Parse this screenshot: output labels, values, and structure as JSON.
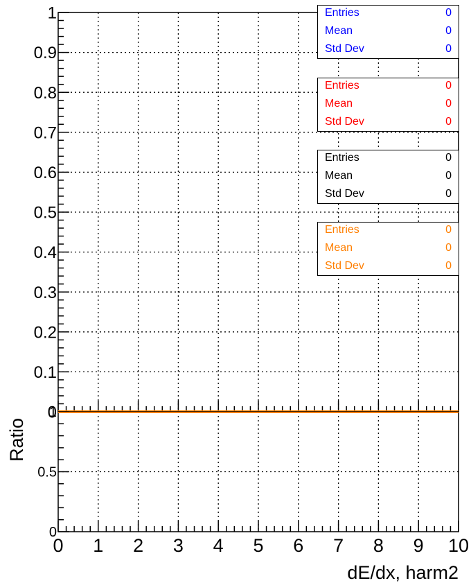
{
  "chart_data": [
    {
      "type": "line",
      "panel": "top",
      "x": [
        0,
        1,
        2,
        3,
        4,
        5,
        6,
        7,
        8,
        9,
        10
      ],
      "xlim": [
        0,
        10
      ],
      "ylim": [
        0,
        1
      ],
      "y_ticks": [
        "0",
        "0.1",
        "0.2",
        "0.3",
        "0.4",
        "0.5",
        "0.6",
        "0.7",
        "0.8",
        "0.9",
        "1"
      ],
      "grid": true,
      "series": [
        {
          "color": "#0000ff",
          "values": [
            0,
            0,
            0,
            0,
            0,
            0,
            0,
            0,
            0,
            0,
            0
          ]
        },
        {
          "color": "#ff0000",
          "values": [
            0,
            0,
            0,
            0,
            0,
            0,
            0,
            0,
            0,
            0,
            0
          ]
        },
        {
          "color": "#000000",
          "values": [
            0,
            0,
            0,
            0,
            0,
            0,
            0,
            0,
            0,
            0,
            0
          ]
        },
        {
          "color": "#ff7f00",
          "values": [
            0,
            0,
            0,
            0,
            0,
            0,
            0,
            0,
            0,
            0,
            0
          ]
        }
      ]
    },
    {
      "type": "line",
      "panel": "ratio",
      "xlabel": "dE/dx, harm2",
      "ylabel": "Ratio",
      "x_ticks": [
        "0",
        "1",
        "2",
        "3",
        "4",
        "5",
        "6",
        "7",
        "8",
        "9",
        "10"
      ],
      "y_ticks": [
        "0",
        "0.5",
        "1"
      ],
      "xlim": [
        0,
        10
      ],
      "ylim": [
        0,
        1
      ],
      "grid": true,
      "series": [
        {
          "color": "#ff7f00",
          "values": [
            1,
            1,
            1,
            1,
            1,
            1,
            1,
            1,
            1,
            1,
            1
          ]
        }
      ]
    }
  ],
  "stat_boxes": [
    {
      "color": "#0000ff",
      "rows": [
        {
          "label": "Entries",
          "value": "0"
        },
        {
          "label": "Mean",
          "value": "0"
        },
        {
          "label": "Std Dev",
          "value": "0"
        }
      ]
    },
    {
      "color": "#ff0000",
      "rows": [
        {
          "label": "Entries",
          "value": "0"
        },
        {
          "label": "Mean",
          "value": "0"
        },
        {
          "label": "Std Dev",
          "value": "0"
        }
      ]
    },
    {
      "color": "#000000",
      "rows": [
        {
          "label": "Entries",
          "value": "0"
        },
        {
          "label": "Mean",
          "value": "0"
        },
        {
          "label": "Std Dev",
          "value": "0"
        }
      ]
    },
    {
      "color": "#ff7f00",
      "rows": [
        {
          "label": "Entries",
          "value": "0"
        },
        {
          "label": "Mean",
          "value": "0"
        },
        {
          "label": "Std Dev",
          "value": "0"
        }
      ]
    }
  ]
}
